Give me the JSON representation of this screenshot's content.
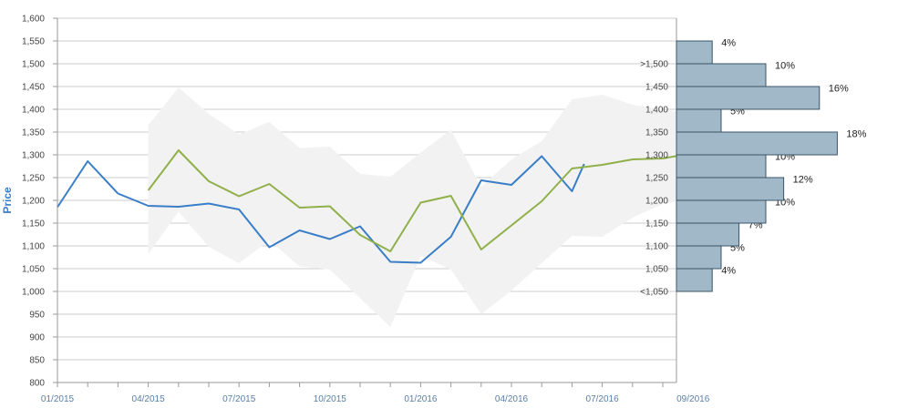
{
  "chart_data": {
    "type": "line",
    "ylabel": "Price",
    "ylim": [
      800,
      1600
    ],
    "yticks": [
      800,
      850,
      900,
      950,
      1000,
      1050,
      1100,
      1150,
      1200,
      1250,
      1300,
      1350,
      1400,
      1450,
      1500,
      1550,
      1600
    ],
    "ytick_labels": [
      "800",
      "850",
      "900",
      "950",
      "1,000",
      "1,050",
      "1,100",
      "1,150",
      "1,200",
      "1,250",
      "1,300",
      "1,350",
      "1,400",
      "1,450",
      "1,500",
      "1,550",
      "1,600"
    ],
    "xlim": [
      0,
      20.5
    ],
    "xticks": [
      0,
      3,
      6,
      9,
      12,
      15,
      18,
      21
    ],
    "xtick_labels": [
      "01/2015",
      "04/2015",
      "07/2015",
      "10/2015",
      "01/2016",
      "04/2016",
      "07/2016",
      "09/2016"
    ],
    "grid": true,
    "series": [
      {
        "color": "#3a7ec8",
        "x": [
          0,
          1,
          2,
          3,
          4,
          5,
          6,
          7,
          8,
          9,
          10,
          11,
          12,
          13,
          14,
          15,
          16,
          17,
          17.4
        ],
        "values": [
          1185,
          1286,
          1215,
          1188,
          1186,
          1193,
          1180,
          1097,
          1134,
          1115,
          1143,
          1065,
          1063,
          1120,
          1244,
          1234,
          1297,
          1220,
          1280
        ]
      },
      {
        "color": "#8fb04a",
        "x": [
          3,
          4,
          5,
          6,
          7,
          8,
          9,
          10,
          11,
          12,
          13,
          14,
          15,
          16,
          17,
          18,
          19,
          20,
          20.5
        ],
        "values": [
          1222,
          1310,
          1242,
          1209,
          1236,
          1184,
          1187,
          1124,
          1088,
          1195,
          1210,
          1092,
          1145,
          1198,
          1270,
          1278,
          1290,
          1292,
          1298
        ]
      }
    ],
    "band": {
      "color": "#f2f2f2",
      "x": [
        3,
        4,
        5,
        6,
        7,
        8,
        9,
        10,
        11,
        12,
        13,
        14,
        15,
        16,
        17,
        18,
        19,
        20,
        20.5
      ],
      "upper": [
        1365,
        1448,
        1390,
        1345,
        1372,
        1315,
        1318,
        1258,
        1252,
        1305,
        1355,
        1230,
        1290,
        1330,
        1422,
        1432,
        1410,
        1400,
        1395
      ],
      "lower": [
        1082,
        1175,
        1098,
        1062,
        1112,
        1055,
        1048,
        985,
        922,
        1078,
        1048,
        950,
        1002,
        1062,
        1122,
        1120,
        1162,
        1192,
        1198
      ]
    },
    "histogram": {
      "color": "#a0b8c8",
      "bins": [
        {
          "label": "<1,050",
          "range": [
            1000,
            1050
          ],
          "percent": 4,
          "percent_label": "4%"
        },
        {
          "label": "1,050",
          "range": [
            1050,
            1100
          ],
          "percent": 5,
          "percent_label": "5%"
        },
        {
          "label": "1,100",
          "range": [
            1100,
            1150
          ],
          "percent": 7,
          "percent_label": "7%"
        },
        {
          "label": "1,150",
          "range": [
            1150,
            1200
          ],
          "percent": 10,
          "percent_label": "10%"
        },
        {
          "label": "1,200",
          "range": [
            1200,
            1250
          ],
          "percent": 12,
          "percent_label": "12%"
        },
        {
          "label": "1,250",
          "range": [
            1250,
            1300
          ],
          "percent": 10,
          "percent_label": "10%"
        },
        {
          "label": "1,300",
          "range": [
            1300,
            1350
          ],
          "percent": 18,
          "percent_label": "18%"
        },
        {
          "label": "1,350",
          "range": [
            1350,
            1400
          ],
          "percent": 5,
          "percent_label": "5%"
        },
        {
          "label": "1,400",
          "range": [
            1400,
            1450
          ],
          "percent": 16,
          "percent_label": "16%"
        },
        {
          "label": "1,450",
          "range": [
            1450,
            1500
          ],
          "percent": 10,
          "percent_label": "10%"
        },
        {
          "label": ">1,500",
          "range": [
            1500,
            1550
          ],
          "percent": 4,
          "percent_label": "4%"
        }
      ]
    }
  }
}
